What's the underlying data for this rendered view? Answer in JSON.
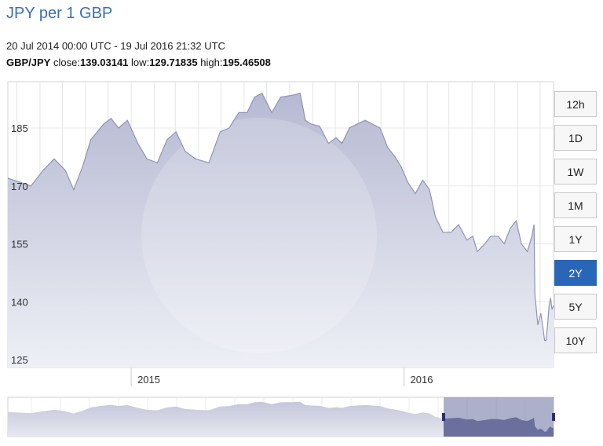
{
  "title": "JPY per 1 GBP",
  "date_range": "20 Jul 2014 00:00 UTC - 19 Jul 2016 21:32 UTC",
  "stats": {
    "pair": "GBP/JPY",
    "close_label": "close:",
    "close": "139.03141",
    "low_label": "low:",
    "low": "129.71835",
    "high_label": "high:",
    "high": "195.46508"
  },
  "range_buttons": [
    {
      "label": "12h",
      "active": false
    },
    {
      "label": "1D",
      "active": false
    },
    {
      "label": "1W",
      "active": false
    },
    {
      "label": "1M",
      "active": false
    },
    {
      "label": "1Y",
      "active": false
    },
    {
      "label": "2Y",
      "active": true
    },
    {
      "label": "5Y",
      "active": false
    },
    {
      "label": "10Y",
      "active": false
    }
  ],
  "colors": {
    "fill_top": "#b6b9d2",
    "fill_bottom": "#eef0f6",
    "line": "#8f93b5",
    "accent": "#2a66b8",
    "nav_selected": "#6a6f9e"
  },
  "chart_data": {
    "type": "area",
    "title": "JPY per 1 GBP",
    "series_name": "GBP/JPY",
    "ylim": [
      123,
      197
    ],
    "y_ticks": [
      125,
      140,
      155,
      170,
      185
    ],
    "x_tick_labels": [
      "2015",
      "2016"
    ],
    "x_tick_dates": [
      "2015-01-01",
      "2016-01-01"
    ],
    "x_range": [
      "2014-07-20",
      "2016-07-19"
    ],
    "grid": true,
    "points": [
      [
        "2014-07-20",
        172
      ],
      [
        "2014-08-05",
        171
      ],
      [
        "2014-08-20",
        170
      ],
      [
        "2014-09-05",
        174
      ],
      [
        "2014-09-20",
        177
      ],
      [
        "2014-10-05",
        174
      ],
      [
        "2014-10-16",
        169
      ],
      [
        "2014-10-28",
        175
      ],
      [
        "2014-11-08",
        182
      ],
      [
        "2014-11-25",
        186
      ],
      [
        "2014-12-05",
        187.5
      ],
      [
        "2014-12-15",
        185
      ],
      [
        "2014-12-27",
        187
      ],
      [
        "2015-01-10",
        181
      ],
      [
        "2015-01-22",
        177
      ],
      [
        "2015-02-05",
        176
      ],
      [
        "2015-02-18",
        182
      ],
      [
        "2015-03-02",
        184
      ],
      [
        "2015-03-14",
        179
      ],
      [
        "2015-03-28",
        177
      ],
      [
        "2015-04-15",
        176
      ],
      [
        "2015-04-30",
        184
      ],
      [
        "2015-05-12",
        185
      ],
      [
        "2015-05-25",
        189
      ],
      [
        "2015-06-05",
        189
      ],
      [
        "2015-06-15",
        193
      ],
      [
        "2015-06-25",
        194
      ],
      [
        "2015-07-08",
        189
      ],
      [
        "2015-07-20",
        193
      ],
      [
        "2015-08-05",
        193.5
      ],
      [
        "2015-08-15",
        194
      ],
      [
        "2015-08-22",
        187
      ],
      [
        "2015-08-30",
        186
      ],
      [
        "2015-09-10",
        185.5
      ],
      [
        "2015-09-22",
        181
      ],
      [
        "2015-10-02",
        182.5
      ],
      [
        "2015-10-10",
        181
      ],
      [
        "2015-10-20",
        185
      ],
      [
        "2015-10-30",
        186
      ],
      [
        "2015-11-10",
        187
      ],
      [
        "2015-11-20",
        186
      ],
      [
        "2015-11-30",
        185
      ],
      [
        "2015-12-10",
        180
      ],
      [
        "2015-12-20",
        177.5
      ],
      [
        "2015-12-28",
        175
      ],
      [
        "2016-01-06",
        171
      ],
      [
        "2016-01-16",
        168
      ],
      [
        "2016-01-26",
        171.5
      ],
      [
        "2016-02-04",
        169
      ],
      [
        "2016-02-12",
        162
      ],
      [
        "2016-02-22",
        158
      ],
      [
        "2016-03-04",
        158
      ],
      [
        "2016-03-14",
        160
      ],
      [
        "2016-03-25",
        156
      ],
      [
        "2016-04-02",
        157
      ],
      [
        "2016-04-08",
        153
      ],
      [
        "2016-04-18",
        155
      ],
      [
        "2016-04-26",
        157
      ],
      [
        "2016-05-06",
        157
      ],
      [
        "2016-05-14",
        155
      ],
      [
        "2016-05-22",
        159
      ],
      [
        "2016-05-30",
        161
      ],
      [
        "2016-06-06",
        155
      ],
      [
        "2016-06-14",
        153
      ],
      [
        "2016-06-20",
        157
      ],
      [
        "2016-06-23",
        160
      ],
      [
        "2016-06-24",
        142
      ],
      [
        "2016-06-26",
        138
      ],
      [
        "2016-06-28",
        134
      ],
      [
        "2016-07-02",
        137
      ],
      [
        "2016-07-05",
        133
      ],
      [
        "2016-07-07",
        130
      ],
      [
        "2016-07-09",
        130
      ],
      [
        "2016-07-11",
        134
      ],
      [
        "2016-07-13",
        139
      ],
      [
        "2016-07-15",
        141
      ],
      [
        "2016-07-17",
        138
      ],
      [
        "2016-07-19",
        139.03
      ]
    ]
  }
}
